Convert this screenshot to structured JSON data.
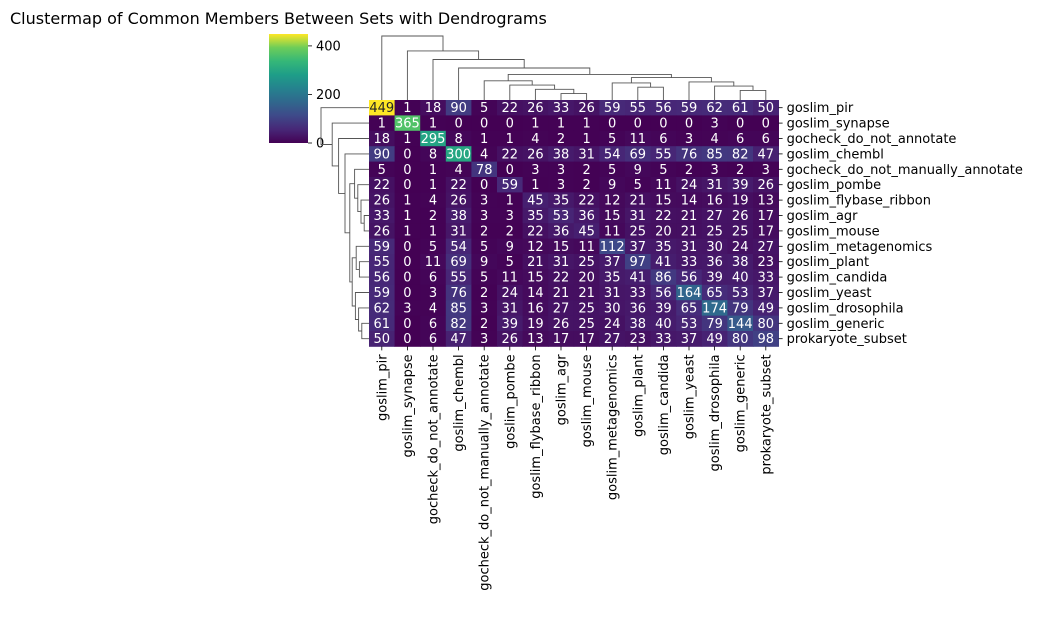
{
  "chart_data": {
    "type": "heatmap",
    "title": "Clustermap of Common Members Between Sets with Dendrograms",
    "rows": [
      "goslim_pir",
      "goslim_synapse",
      "gocheck_do_not_annotate",
      "goslim_chembl",
      "gocheck_do_not_manually_annotate",
      "goslim_pombe",
      "goslim_flybase_ribbon",
      "goslim_agr",
      "goslim_mouse",
      "goslim_metagenomics",
      "goslim_plant",
      "goslim_candida",
      "goslim_yeast",
      "goslim_drosophila",
      "goslim_generic",
      "prokaryote_subset"
    ],
    "columns": [
      "goslim_pir",
      "goslim_synapse",
      "gocheck_do_not_annotate",
      "goslim_chembl",
      "gocheck_do_not_manually_annotate",
      "goslim_pombe",
      "goslim_flybase_ribbon",
      "goslim_agr",
      "goslim_mouse",
      "goslim_metagenomics",
      "goslim_plant",
      "goslim_candida",
      "goslim_yeast",
      "goslim_drosophila",
      "goslim_generic",
      "prokaryote_subset"
    ],
    "values": [
      [
        449,
        1,
        18,
        90,
        5,
        22,
        26,
        33,
        26,
        59,
        55,
        56,
        59,
        62,
        61,
        50
      ],
      [
        1,
        365,
        1,
        0,
        0,
        0,
        1,
        1,
        1,
        0,
        0,
        0,
        0,
        3,
        0,
        0
      ],
      [
        18,
        1,
        295,
        8,
        1,
        1,
        4,
        2,
        1,
        5,
        11,
        6,
        3,
        4,
        6,
        6
      ],
      [
        90,
        0,
        8,
        300,
        4,
        22,
        26,
        38,
        31,
        54,
        69,
        55,
        76,
        85,
        82,
        47
      ],
      [
        5,
        0,
        1,
        4,
        78,
        0,
        3,
        3,
        2,
        5,
        9,
        5,
        2,
        3,
        2,
        3
      ],
      [
        22,
        0,
        1,
        22,
        0,
        59,
        1,
        3,
        2,
        9,
        5,
        11,
        24,
        31,
        39,
        26
      ],
      [
        26,
        1,
        4,
        26,
        3,
        1,
        45,
        35,
        22,
        12,
        21,
        15,
        14,
        16,
        19,
        13
      ],
      [
        33,
        1,
        2,
        38,
        3,
        3,
        35,
        53,
        36,
        15,
        31,
        22,
        21,
        27,
        26,
        17
      ],
      [
        26,
        1,
        1,
        31,
        2,
        2,
        22,
        36,
        45,
        11,
        25,
        20,
        21,
        25,
        25,
        17
      ],
      [
        59,
        0,
        5,
        54,
        5,
        9,
        12,
        15,
        11,
        112,
        37,
        35,
        31,
        30,
        24,
        27
      ],
      [
        55,
        0,
        11,
        69,
        9,
        5,
        21,
        31,
        25,
        37,
        97,
        41,
        33,
        36,
        38,
        23
      ],
      [
        56,
        0,
        6,
        55,
        5,
        11,
        15,
        22,
        20,
        35,
        41,
        86,
        56,
        39,
        40,
        33
      ],
      [
        59,
        0,
        3,
        76,
        2,
        24,
        14,
        21,
        21,
        31,
        33,
        56,
        164,
        65,
        53,
        37
      ],
      [
        62,
        3,
        4,
        85,
        3,
        31,
        16,
        27,
        25,
        30,
        36,
        39,
        65,
        174,
        79,
        49
      ],
      [
        61,
        0,
        6,
        82,
        2,
        39,
        19,
        26,
        25,
        24,
        38,
        40,
        53,
        79,
        144,
        80
      ],
      [
        50,
        0,
        6,
        47,
        3,
        26,
        13,
        17,
        17,
        27,
        23,
        33,
        37,
        49,
        80,
        98
      ]
    ],
    "colormap": "viridis",
    "colorbar": {
      "min": 0,
      "max": 449,
      "ticks": [
        0,
        200,
        400
      ]
    },
    "annotations": true
  }
}
